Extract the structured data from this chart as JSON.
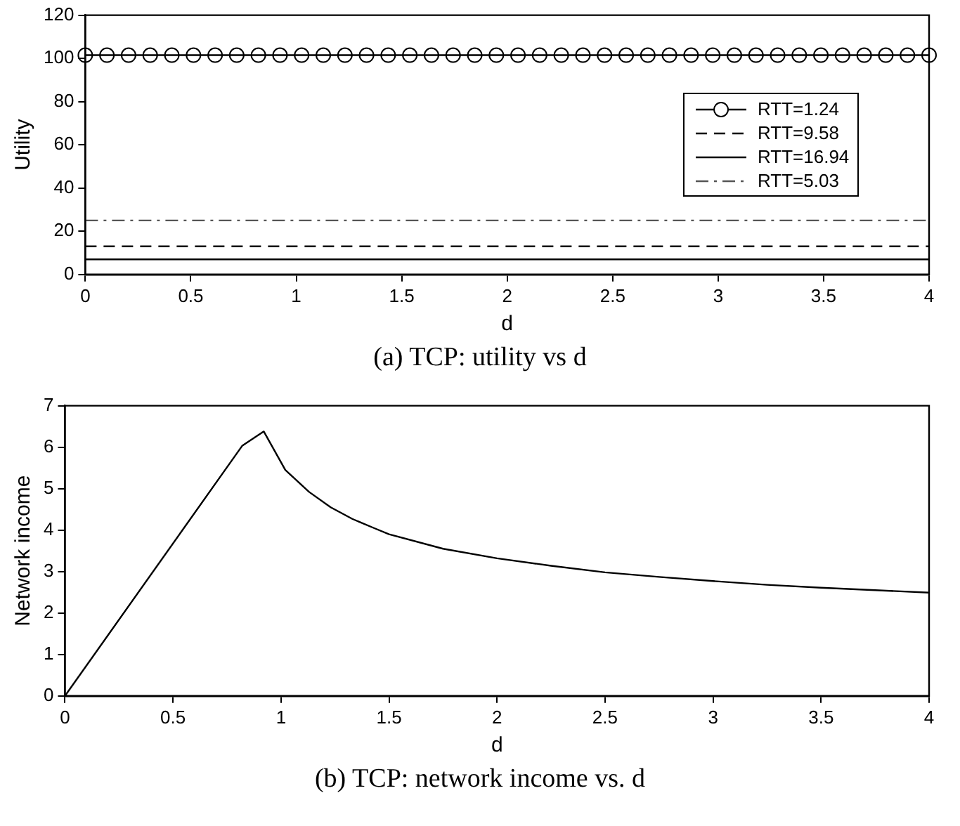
{
  "chart_data": [
    {
      "type": "line",
      "xlabel": "d",
      "ylabel": "Utility",
      "xlim": [
        0,
        4
      ],
      "ylim": [
        0,
        120
      ],
      "xticks": [
        0,
        0.5,
        1,
        1.5,
        2,
        2.5,
        3,
        3.5,
        4
      ],
      "yticks": [
        0,
        20,
        40,
        60,
        80,
        100,
        120
      ],
      "grid": false,
      "legend": "right",
      "annotations": [
        "(a) TCP: utility vs d"
      ],
      "series": [
        {
          "name": "RTT=1.24",
          "color": "#000000",
          "marker": "circle",
          "line_style": "solid",
          "x": [
            0,
            0.1026,
            0.2051,
            0.3077,
            0.4103,
            0.5128,
            0.6154,
            0.7179,
            0.8205,
            0.9231,
            1.0256,
            1.1282,
            1.2308,
            1.3333,
            1.4359,
            1.5385,
            1.641,
            1.7436,
            1.8462,
            1.9487,
            2.0513,
            2.1538,
            2.2564,
            2.359,
            2.4615,
            2.5641,
            2.6667,
            2.7692,
            2.8718,
            2.9744,
            3.0769,
            3.1795,
            3.2821,
            3.3846,
            3.4872,
            3.5897,
            3.6923,
            3.7949,
            3.8974,
            4
          ],
          "values": [
            101.5,
            101.5,
            101.5,
            101.5,
            101.5,
            101.5,
            101.5,
            101.5,
            101.5,
            101.5,
            101.5,
            101.5,
            101.5,
            101.5,
            101.5,
            101.5,
            101.5,
            101.5,
            101.5,
            101.5,
            101.5,
            101.5,
            101.5,
            101.5,
            101.5,
            101.5,
            101.5,
            101.5,
            101.5,
            101.5,
            101.5,
            101.5,
            101.5,
            101.5,
            101.5,
            101.5,
            101.5,
            101.5,
            101.5,
            101.5
          ]
        },
        {
          "name": "RTT=9.58",
          "color": "#000000",
          "marker": "none",
          "line_style": "dashed",
          "x": [
            0,
            4
          ],
          "values": [
            13,
            13
          ]
        },
        {
          "name": "RTT=16.94",
          "color": "#000000",
          "marker": "none",
          "line_style": "solid",
          "x": [
            0,
            4
          ],
          "values": [
            7,
            7
          ]
        },
        {
          "name": "RTT=5.03",
          "color": "#555555",
          "marker": "none",
          "line_style": "dashdot",
          "x": [
            0,
            4
          ],
          "values": [
            25,
            25
          ]
        }
      ]
    },
    {
      "type": "line",
      "xlabel": "d",
      "ylabel": "Network income",
      "xlim": [
        0,
        4
      ],
      "ylim": [
        0,
        7
      ],
      "xticks": [
        0,
        0.5,
        1,
        1.5,
        2,
        2.5,
        3,
        3.5,
        4
      ],
      "yticks": [
        0,
        1,
        2,
        3,
        4,
        5,
        6,
        7
      ],
      "grid": false,
      "legend": false,
      "annotations": [
        "(b) TCP: network income vs. d"
      ],
      "series": [
        {
          "color": "#000000",
          "marker": "none",
          "line_style": "solid",
          "x": [
            0,
            0.82,
            0.92,
            1.02,
            1.13,
            1.23,
            1.33,
            1.43,
            1.5,
            1.75,
            2,
            2.25,
            2.5,
            2.75,
            3,
            3.25,
            3.5,
            3.75,
            4
          ],
          "values": [
            0,
            6.03,
            6.38,
            5.45,
            4.92,
            4.55,
            4.27,
            4.05,
            3.9,
            3.55,
            3.32,
            3.14,
            2.98,
            2.87,
            2.77,
            2.68,
            2.61,
            2.55,
            2.49
          ]
        }
      ]
    }
  ]
}
